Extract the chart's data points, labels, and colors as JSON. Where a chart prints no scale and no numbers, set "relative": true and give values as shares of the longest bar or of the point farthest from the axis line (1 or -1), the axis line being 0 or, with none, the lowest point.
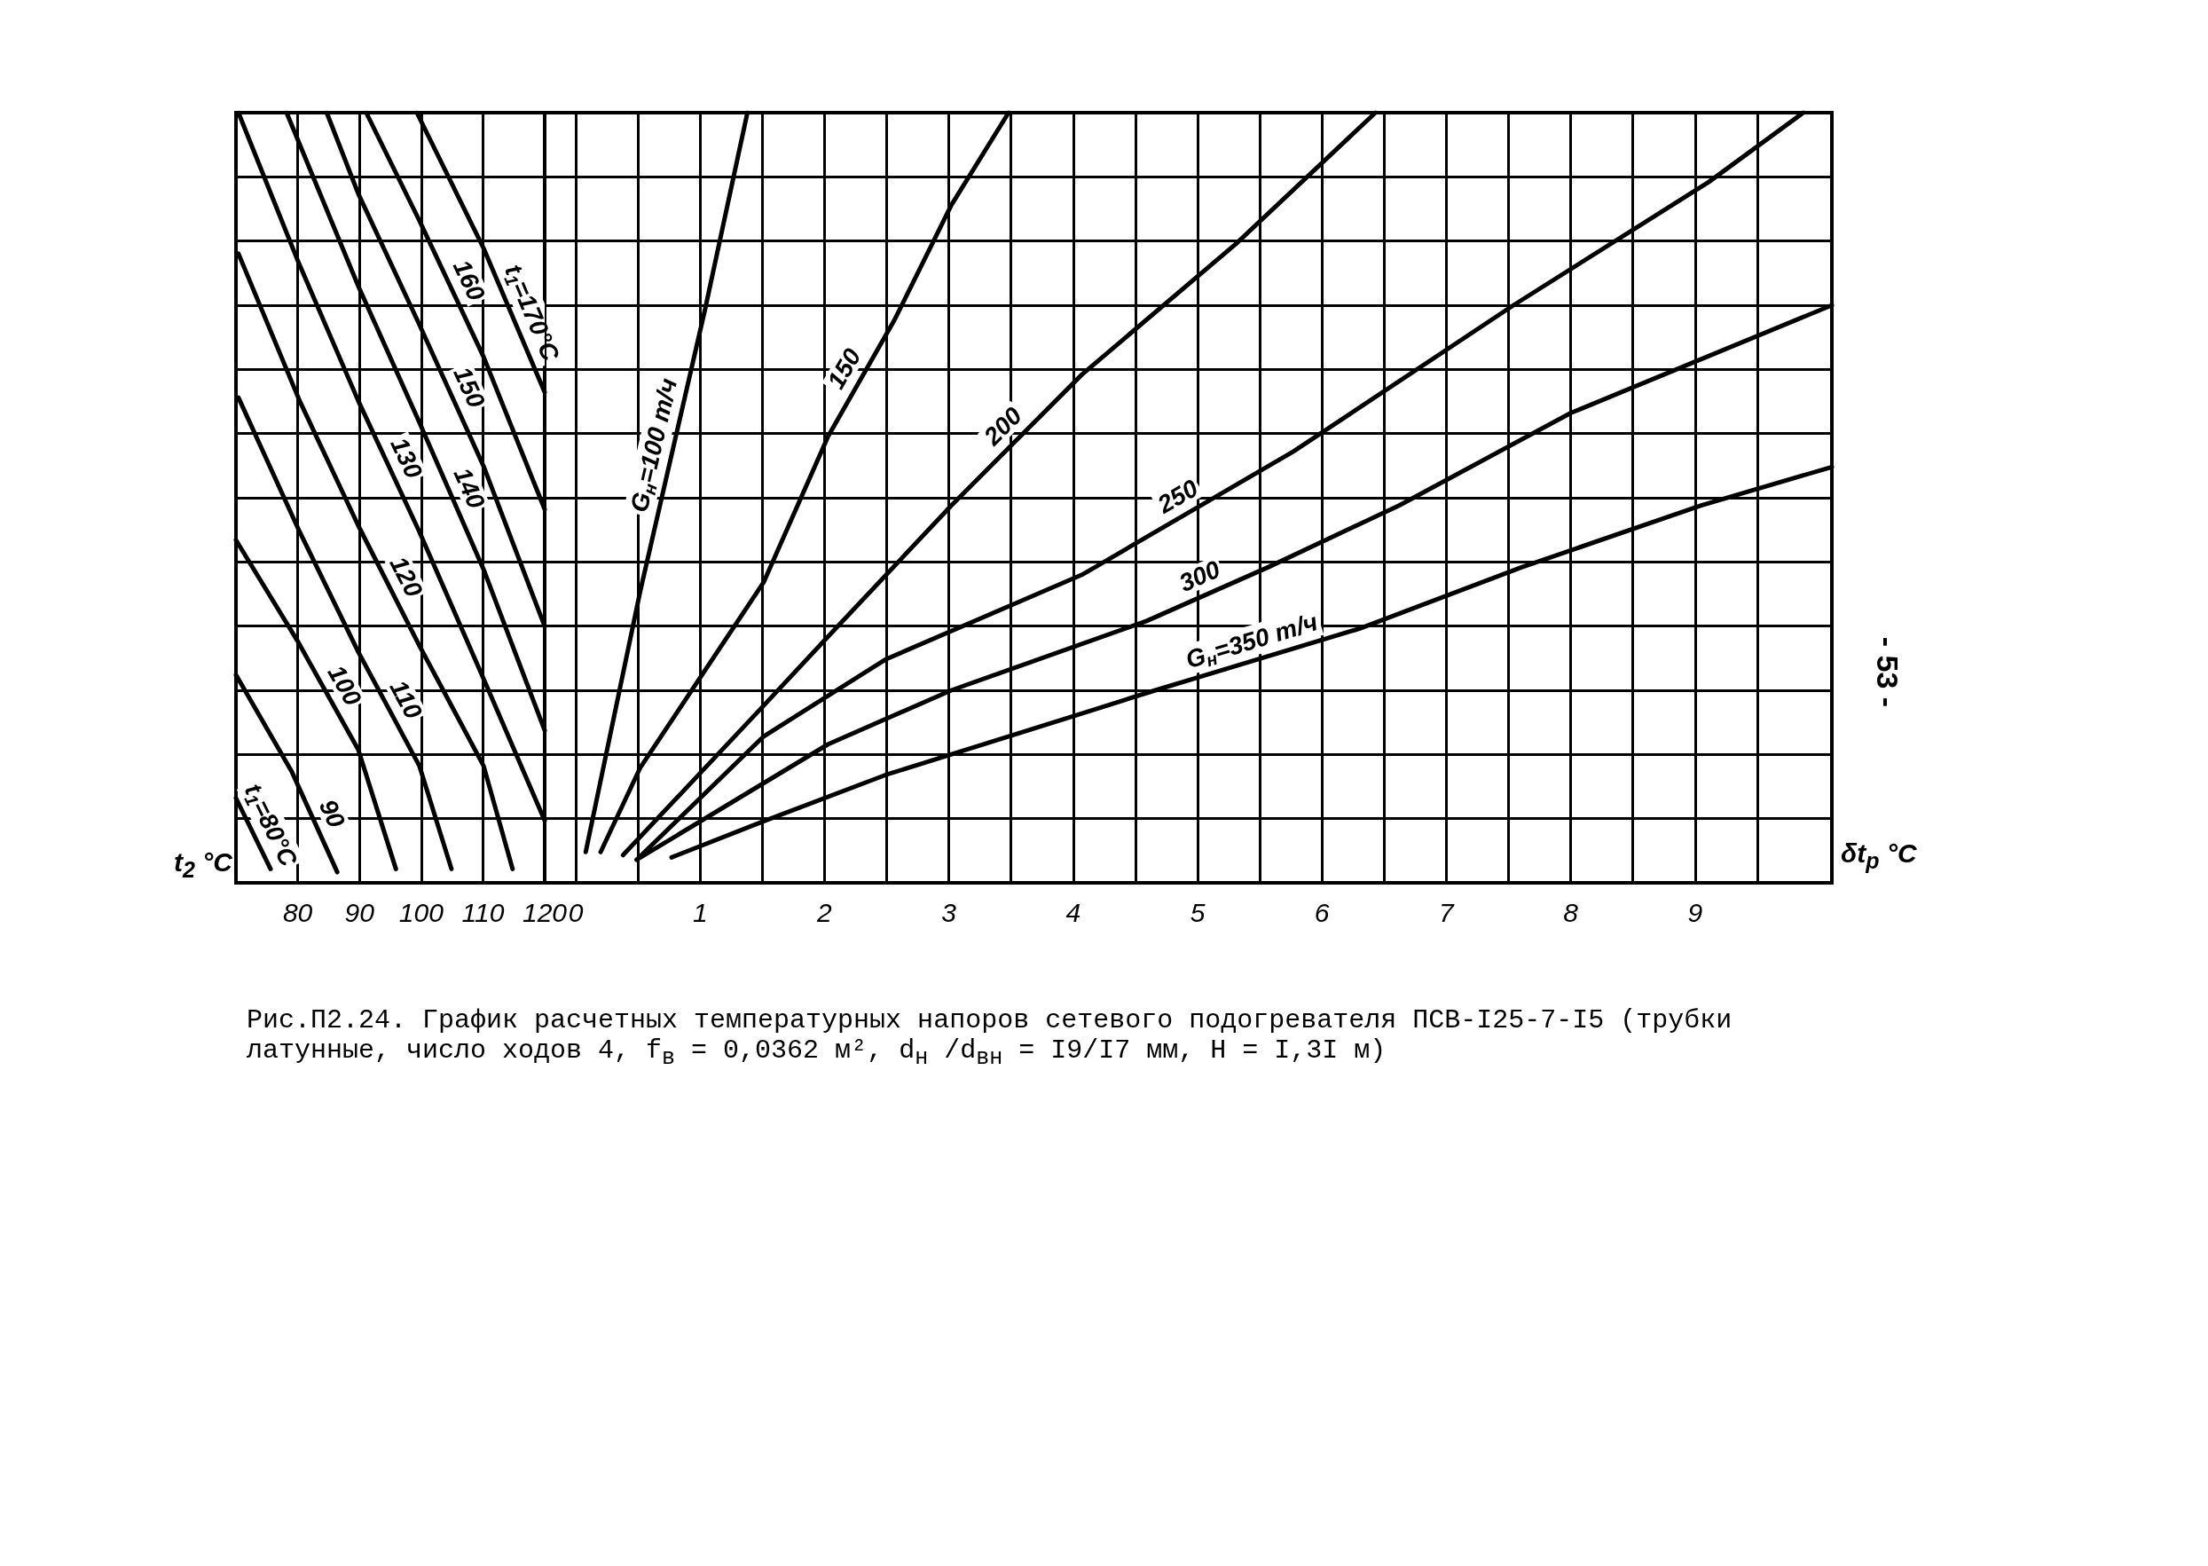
{
  "chart_data": [
    {
      "type": "line",
      "relative": true,
      "xlabel": "t$_{2}$ °C",
      "xlim": [
        70,
        120
      ],
      "xticks": [
        80,
        90,
        100,
        110,
        120
      ],
      "grid": true,
      "tick_labels": "x",
      "marker": "none",
      "line_style": "solid",
      "series": [
        {
          "name": "t$_{1}$=80°C",
          "color": "#000000",
          "x": [
            70,
            75.6
          ],
          "values": [
            0.11,
            0.018
          ]
        },
        {
          "name": "90",
          "color": "#000000",
          "x": [
            70,
            79,
            86.4
          ],
          "values": [
            0.27,
            0.145,
            0.014
          ]
        },
        {
          "name": "100",
          "color": "#000000",
          "x": [
            70,
            79.9,
            89.8,
            95.9
          ],
          "values": [
            0.445,
            0.315,
            0.173,
            0.018
          ]
        },
        {
          "name": "110",
          "color": "#000000",
          "x": [
            70.4,
            80.3,
            89.8,
            99.7,
            104.9
          ],
          "values": [
            0.63,
            0.456,
            0.3,
            0.152,
            0.018
          ]
        },
        {
          "name": "120",
          "color": "#000000",
          "x": [
            70.4,
            80.3,
            89.8,
            99.7,
            110.1,
            114.8
          ],
          "values": [
            0.817,
            0.626,
            0.464,
            0.308,
            0.152,
            0.018
          ]
        },
        {
          "name": "130",
          "color": "#000000",
          "x": [
            70.4,
            79.9,
            89.8,
            99.7,
            110.1,
            120
          ],
          "values": [
            1.0,
            0.81,
            0.626,
            0.456,
            0.265,
            0.081
          ]
        },
        {
          "name": "140",
          "color": "#000000",
          "x": [
            78.2,
            89.8,
            99.7,
            110.1,
            120
          ],
          "values": [
            1.0,
            0.775,
            0.598,
            0.407,
            0.198
          ]
        },
        {
          "name": "150",
          "color": "#000000",
          "x": [
            84.7,
            89.8,
            99.7,
            110.1,
            120
          ],
          "values": [
            1.0,
            0.895,
            0.725,
            0.541,
            0.333
          ]
        },
        {
          "name": "160",
          "color": "#000000",
          "x": [
            91.1,
            99.7,
            110.1,
            120
          ],
          "values": [
            1.0,
            0.86,
            0.683,
            0.485
          ]
        },
        {
          "name": "t$_{1}$=170°C",
          "color": "#000000",
          "x": [
            99.3,
            110.1,
            120
          ],
          "values": [
            1.0,
            0.824,
            0.637
          ]
        }
      ]
    },
    {
      "type": "line",
      "relative": true,
      "xlabel": "δt$_{р}$ °C",
      "xlim": [
        -0.25,
        10.1
      ],
      "xticks": [
        0,
        {
          "value": 0.5,
          "label": null
        },
        1,
        {
          "value": 1.5,
          "label": null
        },
        2,
        {
          "value": 2.5,
          "label": null
        },
        3,
        {
          "value": 3.5,
          "label": null
        },
        4,
        {
          "value": 4.5,
          "label": null
        },
        5,
        {
          "value": 5.5,
          "label": null
        },
        6,
        {
          "value": 6.5,
          "label": null
        },
        7,
        {
          "value": 7.5,
          "label": null
        },
        8,
        {
          "value": 8.5,
          "label": null
        },
        9,
        {
          "value": 9.5,
          "label": null
        }
      ],
      "grid": true,
      "tick_labels": "x",
      "marker": "none",
      "line_style": "solid",
      "annotations": [
        "Рис.П2.24. График расчетных температурных напоров сетевого подогревателя ПСВ-I25-7-I5 (трубки латунные, число ходов 4, f$_{в}$ = 0,0362 м², d$_{н}$ /d$_{вн}$ = I9/I7 мм, H = I,3I м)",
        "- 53 -"
      ],
      "series": [
        {
          "name": "G$_{н}$=100 т/ч",
          "color": "#000000",
          "x": [
            0.08,
            0.52,
            1.04,
            1.38
          ],
          "values": [
            0.04,
            0.38,
            0.745,
            1.0
          ]
        },
        {
          "name": "150",
          "color": "#000000",
          "x": [
            0.2,
            0.52,
            1.51,
            2.03,
            2.56,
            3.02,
            3.48
          ],
          "values": [
            0.04,
            0.15,
            0.39,
            0.58,
            0.73,
            0.88,
            1.0
          ]
        },
        {
          "name": "200",
          "color": "#000000",
          "x": [
            0.38,
            1.51,
            2.03,
            3.02,
            4.07,
            5.31,
            6.43
          ],
          "values": [
            0.036,
            0.23,
            0.32,
            0.49,
            0.66,
            0.83,
            1.0
          ]
        },
        {
          "name": "250",
          "color": "#000000",
          "x": [
            0.49,
            1.51,
            2.49,
            4.07,
            5.77,
            7.54,
            9.11,
            9.87
          ],
          "values": [
            0.03,
            0.19,
            0.29,
            0.4,
            0.56,
            0.75,
            0.91,
            1.0
          ]
        },
        {
          "name": "300",
          "color": "#000000",
          "x": [
            0.49,
            2.03,
            3.02,
            4.59,
            5.57,
            6.62,
            8.0,
            10.1
          ],
          "values": [
            0.03,
            0.18,
            0.25,
            0.34,
            0.41,
            0.49,
            0.61,
            0.75
          ]
        },
        {
          "name": "G$_{н}$=350 т/ч",
          "color": "#000000",
          "x": [
            0.77,
            1.51,
            2.49,
            4.07,
            4.66,
            6.3,
            7.61,
            9.05,
            10.1
          ],
          "values": [
            0.033,
            0.08,
            0.14,
            0.22,
            0.25,
            0.33,
            0.41,
            0.49,
            0.54
          ]
        }
      ]
    }
  ]
}
